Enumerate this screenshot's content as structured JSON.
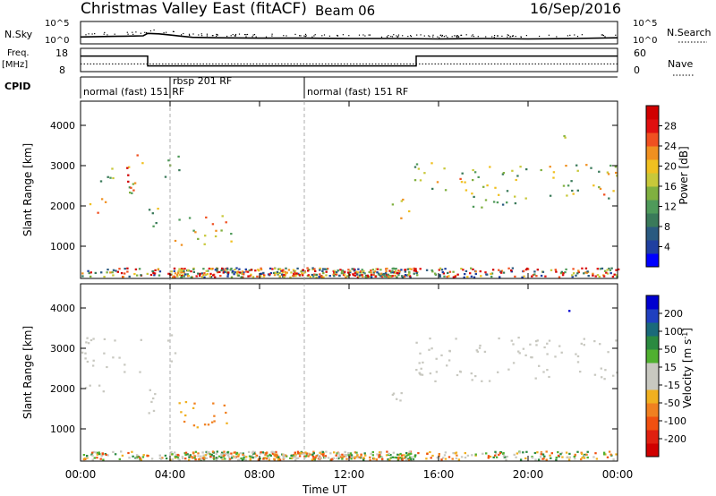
{
  "header": {
    "station": "Christmas Valley East (fitACF)",
    "beam": "Beam 06",
    "date": "16/Sep/2016"
  },
  "strip_labels": {
    "nsky": "N.Sky",
    "nsearch": "N.Search",
    "freq": "Freq.",
    "freq_unit": "[MHz]",
    "nave": "Nave",
    "cpid": "CPID",
    "log_hi": "10^5",
    "log_lo": "10^0",
    "freq_ticks": [
      "18",
      "8"
    ],
    "nave_ticks": [
      "60",
      "0"
    ]
  },
  "cpid_segments": [
    {
      "start_h": 0,
      "label": "normal (fast) 151 RF"
    },
    {
      "start_h": 4,
      "label": "rbsp 201 RF"
    },
    {
      "start_h": 10,
      "label": "normal (fast) 151 RF"
    }
  ],
  "colors": {
    "power_scale": [
      "#0000ff",
      "#1f3fa0",
      "#2a5a80",
      "#3a7a5a",
      "#4f9a5a",
      "#80b040",
      "#c8c83a",
      "#f0c020",
      "#f09020",
      "#f05020",
      "#e01010",
      "#d00000"
    ],
    "velocity_scale": [
      "#0000d0",
      "#2040c0",
      "#1a6a7a",
      "#2a8a40",
      "#50b030",
      "#c8c8c0",
      "#c8c8c0",
      "#f0b020",
      "#f08020",
      "#f05010",
      "#e02010",
      "#d00000"
    ],
    "ground_scatter": "#c8c8c0"
  },
  "chart_data": [
    {
      "type": "line",
      "title": "Christmas Valley East (fitACF)",
      "ylabel": "N.Sky",
      "y2label": "N.Search",
      "xlim": [
        "00:00",
        "24:00"
      ],
      "log_scale": true,
      "series": [
        {
          "name": "N.Sky",
          "x": [
            0,
            1,
            2,
            2.8,
            3,
            3.5,
            4,
            4.5,
            5,
            6,
            8,
            10,
            12,
            14,
            16,
            18,
            20,
            22,
            24
          ],
          "y": [
            1.3,
            1.4,
            1.5,
            1.6,
            2.2,
            2.1,
            1.8,
            1.5,
            1.2,
            1.1,
            1.0,
            1.0,
            0.9,
            0.9,
            0.8,
            0.9,
            0.8,
            0.9,
            1.1
          ]
        }
      ]
    },
    {
      "type": "line",
      "ylabel": "Freq. [MHz]",
      "y2label": "Nave",
      "ylim": [
        8,
        18
      ],
      "series": [
        {
          "name": "Freq.",
          "x": [
            0,
            3,
            3,
            15,
            15,
            24
          ],
          "y": [
            15,
            15,
            10,
            10,
            15,
            15
          ]
        },
        {
          "name": "Nave",
          "x": [
            0,
            24
          ],
          "y": [
            18,
            18
          ]
        }
      ]
    },
    {
      "type": "heatmap",
      "ylabel": "Slant Range [km]",
      "colorbar_label": "Power [dB]",
      "colorbar_ticks": [
        "28",
        "24",
        "20",
        "16",
        "12",
        "8",
        "4"
      ],
      "y_ticks": [
        "4000",
        "3000",
        "2000",
        "1000"
      ],
      "ylim": [
        200,
        4600
      ],
      "xlim": [
        0,
        24
      ],
      "regions": [
        {
          "t0": 0,
          "t1": 1.1,
          "r0": 1800,
          "r1": 2200,
          "level": [
            6,
            9
          ]
        },
        {
          "t0": 0,
          "t1": 1.3,
          "r0": 2600,
          "r1": 2900,
          "level": [
            3,
            6
          ]
        },
        {
          "t0": 1.3,
          "t1": 2.6,
          "r0": 2300,
          "r1": 3000,
          "level": [
            4,
            8
          ]
        },
        {
          "t0": 2.0,
          "t1": 2.8,
          "r0": 2400,
          "r1": 3200,
          "level": [
            9,
            11
          ]
        },
        {
          "t0": 2.4,
          "t1": 2.9,
          "r0": 3000,
          "r1": 3400,
          "level": [
            6,
            9
          ]
        },
        {
          "t0": 3.0,
          "t1": 3.8,
          "r0": 1300,
          "r1": 2000,
          "level": [
            3,
            7
          ]
        },
        {
          "t0": 3.6,
          "t1": 4.4,
          "r0": 2700,
          "r1": 3400,
          "level": [
            3,
            6
          ]
        },
        {
          "t0": 4.0,
          "t1": 6.8,
          "r0": 1050,
          "r1": 1800,
          "level": [
            3,
            9
          ]
        },
        {
          "t0": 13.8,
          "t1": 14.9,
          "r0": 1700,
          "r1": 2300,
          "level": [
            4,
            8
          ]
        },
        {
          "t0": 14.9,
          "t1": 17.2,
          "r0": 2400,
          "r1": 3100,
          "level": [
            3,
            9
          ]
        },
        {
          "t0": 16.5,
          "t1": 20.0,
          "r0": 2100,
          "r1": 3000,
          "level": [
            3,
            7
          ]
        },
        {
          "t0": 17.0,
          "t1": 19.5,
          "r0": 1900,
          "r1": 2200,
          "level": [
            2,
            5
          ]
        },
        {
          "t0": 20.0,
          "t1": 24.0,
          "r0": 2200,
          "r1": 3100,
          "level": [
            3,
            9
          ]
        },
        {
          "t0": 21.5,
          "t1": 22.2,
          "r0": 3600,
          "r1": 3900,
          "level": [
            4,
            7
          ]
        }
      ],
      "near_range": {
        "t0": 0,
        "t1": 24,
        "r0": 250,
        "r1": 480,
        "level": [
          1,
          11
        ]
      }
    },
    {
      "type": "heatmap",
      "ylabel": "Slant Range [km]",
      "colorbar_label": "Velocity [m s^-1]",
      "colorbar_ticks": [
        "200",
        "100",
        "50",
        "15",
        "-15",
        "-50",
        "-100",
        "-200"
      ],
      "y_ticks": [
        "4000",
        "3000",
        "2000",
        "1000"
      ],
      "ylim": [
        200,
        4600
      ],
      "xlim": [
        0,
        24
      ],
      "regions": [
        {
          "t0": 0,
          "t1": 1.2,
          "r0": 1800,
          "r1": 2200,
          "level": [
            5,
            6
          ]
        },
        {
          "t0": 0,
          "t1": 2.8,
          "r0": 2400,
          "r1": 3300,
          "level": [
            5,
            6
          ]
        },
        {
          "t0": 2.9,
          "t1": 3.9,
          "r0": 1300,
          "r1": 2000,
          "level": [
            5,
            6
          ]
        },
        {
          "t0": 3.6,
          "t1": 4.3,
          "r0": 2700,
          "r1": 3400,
          "level": [
            5,
            6
          ]
        },
        {
          "t0": 4.0,
          "t1": 6.8,
          "r0": 1050,
          "r1": 1800,
          "level": [
            7,
            8
          ]
        },
        {
          "t0": 13.8,
          "t1": 14.9,
          "r0": 1700,
          "r1": 2200,
          "level": [
            5,
            6
          ]
        },
        {
          "t0": 14.9,
          "t1": 24.0,
          "r0": 2200,
          "r1": 3300,
          "level": [
            5,
            6
          ]
        },
        {
          "t0": 21.6,
          "t1": 22.0,
          "r0": 3700,
          "r1": 4000,
          "level": [
            0,
            1
          ]
        }
      ],
      "near_range": {
        "t0": 0,
        "t1": 24,
        "r0": 250,
        "r1": 460,
        "level": [
          3,
          9
        ]
      }
    }
  ],
  "x_axis": {
    "title": "Time UT",
    "ticks": [
      "00:00",
      "04:00",
      "08:00",
      "12:00",
      "16:00",
      "20:00",
      "00:00"
    ]
  }
}
